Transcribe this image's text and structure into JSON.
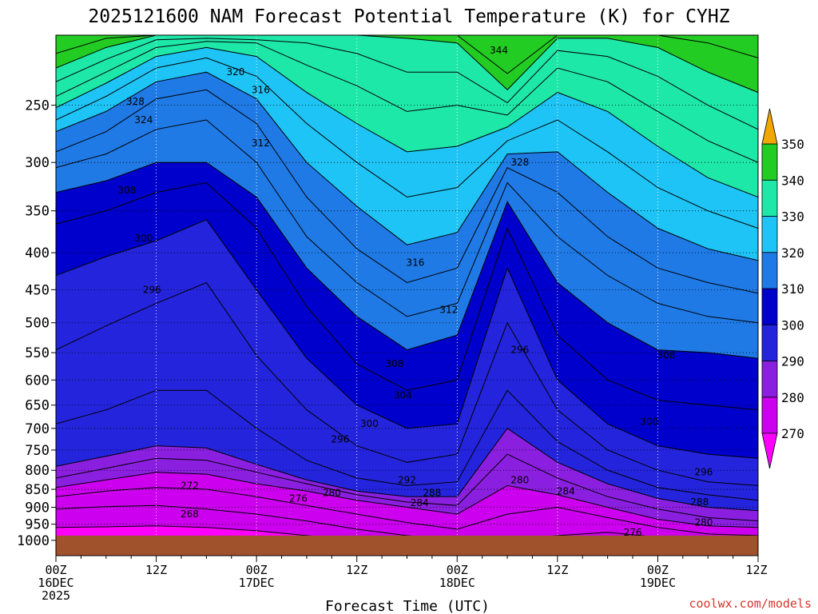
{
  "chart_data": {
    "type": "heatmap",
    "title": "2025121600 NAM Forecast Potential Temperature (K) for CYHZ",
    "xlabel": "Forecast Time (UTC)",
    "ylabel": "",
    "credit": "coolwx.com/models",
    "x_ticks": [
      {
        "hour": 0,
        "lines": [
          "00Z",
          "16DEC",
          "2025"
        ]
      },
      {
        "hour": 12,
        "lines": [
          "12Z"
        ]
      },
      {
        "hour": 24,
        "lines": [
          "00Z",
          "17DEC"
        ]
      },
      {
        "hour": 36,
        "lines": [
          "12Z"
        ]
      },
      {
        "hour": 48,
        "lines": [
          "00Z",
          "18DEC"
        ]
      },
      {
        "hour": 60,
        "lines": [
          "12Z"
        ]
      },
      {
        "hour": 72,
        "lines": [
          "00Z",
          "19DEC"
        ]
      },
      {
        "hour": 84,
        "lines": [
          "12Z"
        ]
      }
    ],
    "y_ticks": [
      "250",
      "300",
      "350",
      "400",
      "450",
      "500",
      "550",
      "600",
      "650",
      "700",
      "750",
      "800",
      "850",
      "900",
      "950",
      "1000"
    ],
    "y_tick_values": [
      250,
      300,
      350,
      400,
      450,
      500,
      550,
      600,
      650,
      700,
      750,
      800,
      850,
      900,
      950,
      1000
    ],
    "xlim_hours": [
      0,
      84
    ],
    "ylim_hpa": [
      1050,
      200
    ],
    "y_scale": "log",
    "grid": true,
    "colorbar": {
      "levels": [
        270,
        280,
        290,
        300,
        310,
        320,
        330,
        340,
        350
      ],
      "labels": [
        "270",
        "280",
        "290",
        "300",
        "310",
        "320",
        "330",
        "340",
        "350"
      ],
      "colors": [
        "#ff00ff",
        "#cc00ee",
        "#8b1fe0",
        "#2424dd",
        "#0000cc",
        "#1f7ae6",
        "#1ec4f5",
        "#1ee8a8",
        "#22cc22",
        "#f5f50a",
        "#f0a800"
      ],
      "extend": "both"
    },
    "isentropes": [
      {
        "theta": 268,
        "p": [
          960,
          958,
          955,
          960,
          970,
          985,
          1000,
          1010,
          1010,
          1010,
          1010,
          1010,
          1010,
          1010,
          1010
        ]
      },
      {
        "theta": 272,
        "p": [
          905,
          898,
          895,
          905,
          920,
          940,
          965,
          985,
          1000,
          1000,
          985,
          975,
          990,
          1000,
          1000
        ]
      },
      {
        "theta": 276,
        "p": [
          870,
          855,
          845,
          850,
          870,
          895,
          920,
          945,
          965,
          920,
          900,
          930,
          960,
          980,
          985
        ]
      },
      {
        "theta": 280,
        "p": [
          845,
          825,
          805,
          810,
          835,
          855,
          880,
          900,
          920,
          840,
          865,
          900,
          935,
          955,
          960
        ]
      },
      {
        "theta": 284,
        "p": [
          820,
          795,
          770,
          775,
          805,
          835,
          865,
          885,
          895,
          760,
          820,
          870,
          905,
          930,
          940
        ]
      },
      {
        "theta": 288,
        "p": [
          790,
          765,
          740,
          745,
          785,
          825,
          855,
          870,
          870,
          700,
          780,
          835,
          875,
          900,
          910
        ]
      },
      {
        "theta": 292,
        "p": [
          690,
          660,
          620,
          620,
          700,
          775,
          820,
          840,
          830,
          620,
          730,
          800,
          845,
          865,
          880
        ]
      },
      {
        "theta": 296,
        "p": [
          545,
          505,
          470,
          440,
          555,
          660,
          740,
          780,
          760,
          500,
          660,
          750,
          800,
          830,
          840
        ]
      },
      {
        "theta": 300,
        "p": [
          430,
          405,
          385,
          360,
          450,
          560,
          650,
          700,
          690,
          420,
          600,
          690,
          740,
          760,
          770
        ]
      },
      {
        "theta": 304,
        "p": [
          365,
          350,
          330,
          320,
          370,
          475,
          570,
          620,
          600,
          370,
          520,
          600,
          640,
          650,
          660
        ]
      },
      {
        "theta": 308,
        "p": [
          330,
          318,
          300,
          300,
          335,
          420,
          490,
          545,
          520,
          340,
          440,
          500,
          545,
          550,
          560
        ]
      },
      {
        "theta": 312,
        "p": [
          305,
          292,
          270,
          262,
          300,
          380,
          440,
          490,
          470,
          320,
          380,
          430,
          470,
          490,
          500
        ]
      },
      {
        "theta": 316,
        "p": [
          290,
          272,
          245,
          238,
          265,
          335,
          395,
          440,
          420,
          305,
          330,
          380,
          420,
          440,
          455
        ]
      },
      {
        "theta": 320,
        "p": [
          272,
          255,
          232,
          225,
          245,
          300,
          345,
          390,
          375,
          292,
          290,
          330,
          370,
          395,
          410
        ]
      },
      {
        "theta": 324,
        "p": [
          262,
          243,
          222,
          215,
          228,
          265,
          300,
          335,
          325,
          280,
          262,
          290,
          325,
          350,
          370
        ]
      },
      {
        "theta": 328,
        "p": [
          252,
          233,
          214,
          208,
          214,
          240,
          265,
          290,
          285,
          268,
          240,
          255,
          285,
          315,
          335
        ]
      },
      {
        "theta": 332,
        "p": [
          243,
          225,
          208,
          204,
          205,
          220,
          235,
          255,
          250,
          258,
          222,
          232,
          255,
          280,
          300
        ]
      },
      {
        "theta": 336,
        "p": [
          232,
          216,
          203,
          202,
          203,
          205,
          212,
          225,
          225,
          248,
          210,
          214,
          228,
          250,
          270
        ]
      },
      {
        "theta": 340,
        "p": [
          222,
          208,
          200,
          200,
          200,
          200,
          200,
          202,
          205,
          238,
          202,
          202,
          208,
          225,
          240
        ]
      },
      {
        "theta": 344,
        "p": [
          212,
          202,
          200,
          200,
          200,
          200,
          200,
          200,
          200,
          226,
          200,
          200,
          200,
          205,
          215
        ]
      }
    ],
    "isentrope_hours": [
      0,
      6,
      12,
      18,
      24,
      30,
      36,
      42,
      48,
      54,
      60,
      66,
      72,
      78,
      84
    ],
    "contour_labels": [
      {
        "text": "344",
        "hour": 53.0,
        "p": 210
      },
      {
        "text": "320",
        "hour": 21.5,
        "p": 225
      },
      {
        "text": "316",
        "hour": 24.5,
        "p": 238
      },
      {
        "text": "328",
        "hour": 9.5,
        "p": 247
      },
      {
        "text": "324",
        "hour": 10.5,
        "p": 262
      },
      {
        "text": "312",
        "hour": 24.5,
        "p": 282
      },
      {
        "text": "328",
        "hour": 55.5,
        "p": 300
      },
      {
        "text": "308",
        "hour": 8.5,
        "p": 328
      },
      {
        "text": "300",
        "hour": 10.5,
        "p": 382
      },
      {
        "text": "316",
        "hour": 43.0,
        "p": 413
      },
      {
        "text": "296",
        "hour": 11.5,
        "p": 450
      },
      {
        "text": "312",
        "hour": 47.0,
        "p": 480
      },
      {
        "text": "296",
        "hour": 55.5,
        "p": 545
      },
      {
        "text": "308",
        "hour": 40.5,
        "p": 570
      },
      {
        "text": "308",
        "hour": 73.0,
        "p": 555
      },
      {
        "text": "304",
        "hour": 41.5,
        "p": 630
      },
      {
        "text": "300",
        "hour": 37.5,
        "p": 690
      },
      {
        "text": "300",
        "hour": 71.0,
        "p": 685
      },
      {
        "text": "296",
        "hour": 34.0,
        "p": 725
      },
      {
        "text": "292",
        "hour": 42.0,
        "p": 825
      },
      {
        "text": "296",
        "hour": 77.5,
        "p": 805
      },
      {
        "text": "272",
        "hour": 16.0,
        "p": 840
      },
      {
        "text": "280",
        "hour": 33.0,
        "p": 860
      },
      {
        "text": "276",
        "hour": 29.0,
        "p": 875
      },
      {
        "text": "288",
        "hour": 45.0,
        "p": 860
      },
      {
        "text": "284",
        "hour": 43.5,
        "p": 887
      },
      {
        "text": "280",
        "hour": 55.5,
        "p": 825
      },
      {
        "text": "284",
        "hour": 61.0,
        "p": 855
      },
      {
        "text": "288",
        "hour": 77.0,
        "p": 885
      },
      {
        "text": "268",
        "hour": 16.0,
        "p": 920
      },
      {
        "text": "280",
        "hour": 77.5,
        "p": 945
      },
      {
        "text": "276",
        "hour": 69.0,
        "p": 975
      }
    ],
    "ground": {
      "p": 985,
      "color": "#a0522d"
    }
  }
}
